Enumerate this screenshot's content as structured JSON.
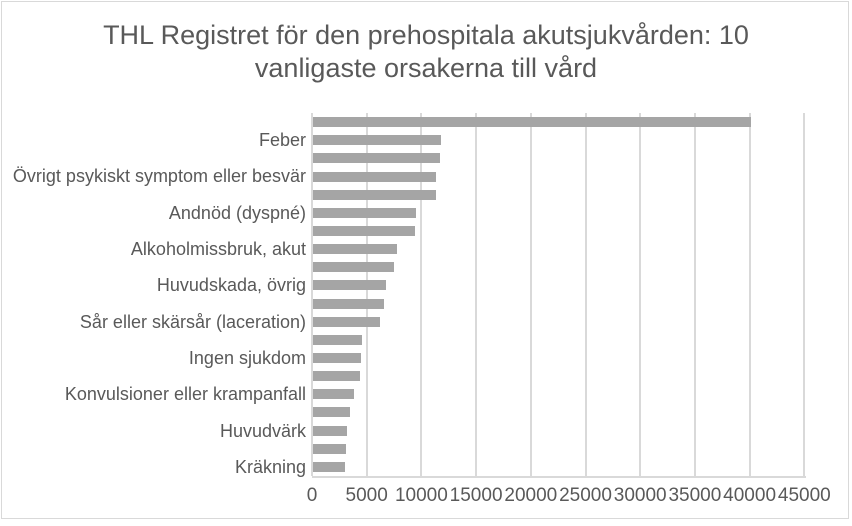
{
  "colors": {
    "background": "#ffffff",
    "frame_border": "#d9d9d9",
    "gridline": "#d9d9d9",
    "bar": "#a5a5a5",
    "text": "#595959"
  },
  "chart_data": {
    "type": "bar",
    "orientation": "horizontal",
    "title": "THL Registret för den prehospitala akutsjukvården: 10 vanligaste orsakerna till vård",
    "title_lines": [
      "THL Registret för den prehospitala akutsjukvården: 10",
      "vanligaste orsakerna till vård"
    ],
    "xlabel": "",
    "ylabel": "",
    "xlim": [
      0,
      45000
    ],
    "x_ticks": [
      0,
      5000,
      10000,
      15000,
      20000,
      25000,
      30000,
      35000,
      40000,
      45000
    ],
    "grid": true,
    "legend": false,
    "note": "Each labeled cause is drawn with a paired unlabeled bar above it; topmost long bar is unlabeled.",
    "rows": [
      {
        "label": "",
        "value": 40000
      },
      {
        "label": "Feber",
        "value": 11680
      },
      {
        "label": "",
        "value": 11590
      },
      {
        "label": "Övrigt psykiskt symptom eller besvär",
        "value": 11230
      },
      {
        "label": "",
        "value": 11210
      },
      {
        "label": "Andnöd (dyspné)",
        "value": 9450
      },
      {
        "label": "",
        "value": 9330
      },
      {
        "label": "Alkoholmissbruk, akut",
        "value": 7650
      },
      {
        "label": "",
        "value": 7380
      },
      {
        "label": "Huvudskada, övrig",
        "value": 6650
      },
      {
        "label": "",
        "value": 6530
      },
      {
        "label": "Sår eller skärsår (laceration)",
        "value": 6170
      },
      {
        "label": "",
        "value": 4480
      },
      {
        "label": "Ingen sjukdom",
        "value": 4360
      },
      {
        "label": "",
        "value": 4270
      },
      {
        "label": "Konvulsioner eller krampanfall",
        "value": 3780
      },
      {
        "label": "",
        "value": 3380
      },
      {
        "label": "Huvudvärk",
        "value": 3110
      },
      {
        "label": "",
        "value": 2990
      },
      {
        "label": "Kräkning",
        "value": 2900
      }
    ]
  }
}
